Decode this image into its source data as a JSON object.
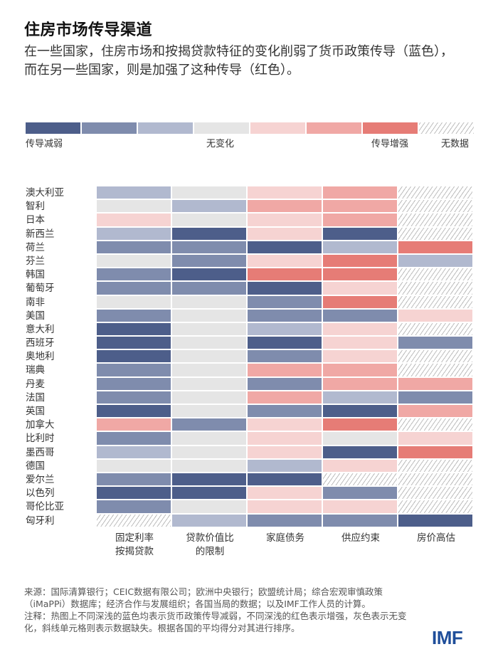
{
  "header": {
    "title": "住房市场传导渠道",
    "subtitle": "在一些国家，住房市场和按揭贷款特征的变化削弱了货币政策传导（蓝色），而在另一些国家，则是加强了这种传导（红色）。"
  },
  "legend": {
    "scale": [
      {
        "key": "B3",
        "color": "#4d5e8a"
      },
      {
        "key": "B2",
        "color": "#7f8cad"
      },
      {
        "key": "B1",
        "color": "#b1b9cf"
      },
      {
        "key": "N",
        "color": "#e5e5e5"
      },
      {
        "key": "R1",
        "color": "#f6d3d2"
      },
      {
        "key": "R2",
        "color": "#f0a8a5"
      },
      {
        "key": "R3",
        "color": "#e67c76"
      },
      {
        "key": "X",
        "color": "hatch"
      }
    ],
    "labels": {
      "weakened": "传导减弱",
      "no_change": "无变化",
      "strengthened": "传导增强",
      "no_data": "无数据"
    }
  },
  "chart_data": {
    "type": "heatmap",
    "title": "住房市场传导渠道",
    "subtitle": "在一些国家，住房市场和按揭贷款特征的变化削弱了货币政策传导（蓝色），而在另一些国家，则是加强了这种传导（红色）。",
    "value_scale": {
      "B3": -3,
      "B2": -2,
      "B1": -1,
      "N": 0,
      "R1": 1,
      "R2": 2,
      "R3": 3,
      "X": null
    },
    "columns": [
      "固定利率按揭贷款",
      "贷款价值比的限制",
      "家庭债务",
      "供应约束",
      "房价高估"
    ],
    "column_labels": [
      [
        "固定利率",
        "按揭贷款"
      ],
      [
        "贷款价值比",
        "的限制"
      ],
      [
        "家庭债务"
      ],
      [
        "供应约束"
      ],
      [
        "房价高估"
      ]
    ],
    "rows": [
      {
        "country": "澳大利亚",
        "cells": [
          "B1",
          "N",
          "R1",
          "R2",
          "X"
        ]
      },
      {
        "country": "智利",
        "cells": [
          "N",
          "B1",
          "R2",
          "R2",
          "X"
        ]
      },
      {
        "country": "日本",
        "cells": [
          "R1",
          "N",
          "R1",
          "R2",
          "X"
        ]
      },
      {
        "country": "新西兰",
        "cells": [
          "B1",
          "B3",
          "R1",
          "B3",
          "X"
        ]
      },
      {
        "country": "荷兰",
        "cells": [
          "B2",
          "B2",
          "B3",
          "B1",
          "R3"
        ]
      },
      {
        "country": "芬兰",
        "cells": [
          "N",
          "B2",
          "R1",
          "R3",
          "B1"
        ]
      },
      {
        "country": "韩国",
        "cells": [
          "B2",
          "B3",
          "R3",
          "R3",
          "X"
        ]
      },
      {
        "country": "葡萄牙",
        "cells": [
          "B2",
          "B2",
          "B3",
          "R1",
          "X"
        ]
      },
      {
        "country": "南非",
        "cells": [
          "N",
          "N",
          "B2",
          "R3",
          "X"
        ]
      },
      {
        "country": "美国",
        "cells": [
          "B2",
          "N",
          "B2",
          "B2",
          "R1"
        ]
      },
      {
        "country": "意大利",
        "cells": [
          "B3",
          "N",
          "B1",
          "R1",
          "X"
        ]
      },
      {
        "country": "西班牙",
        "cells": [
          "B3",
          "N",
          "B3",
          "R1",
          "B2"
        ]
      },
      {
        "country": "奥地利",
        "cells": [
          "B3",
          "N",
          "B2",
          "R1",
          "X"
        ]
      },
      {
        "country": "瑞典",
        "cells": [
          "B2",
          "N",
          "R2",
          "R2",
          "X"
        ]
      },
      {
        "country": "丹麦",
        "cells": [
          "B2",
          "N",
          "B2",
          "R2",
          "R2"
        ]
      },
      {
        "country": "法国",
        "cells": [
          "B2",
          "N",
          "R2",
          "B1",
          "B2"
        ]
      },
      {
        "country": "英国",
        "cells": [
          "B3",
          "N",
          "B2",
          "B3",
          "R2"
        ]
      },
      {
        "country": "加拿大",
        "cells": [
          "R2",
          "B2",
          "R1",
          "R3",
          "X"
        ]
      },
      {
        "country": "比利时",
        "cells": [
          "B2",
          "N",
          "R1",
          "N",
          "R1"
        ]
      },
      {
        "country": "墨西哥",
        "cells": [
          "B1",
          "N",
          "R1",
          "B3",
          "R3"
        ]
      },
      {
        "country": "德国",
        "cells": [
          "N",
          "N",
          "B1",
          "R1",
          "X"
        ]
      },
      {
        "country": "爱尔兰",
        "cells": [
          "B2",
          "B3",
          "B3",
          "X",
          "X"
        ]
      },
      {
        "country": "以色列",
        "cells": [
          "B3",
          "B3",
          "R1",
          "B2",
          "X"
        ]
      },
      {
        "country": "哥伦比亚",
        "cells": [
          "B2",
          "N",
          "R1",
          "R1",
          "X"
        ]
      },
      {
        "country": "匈牙利",
        "cells": [
          "X",
          "B1",
          "B2",
          "B2",
          "B3"
        ]
      }
    ],
    "legend": [
      "传导减弱",
      "无变化",
      "传导增强",
      "无数据"
    ],
    "legend_position": "top"
  },
  "footer": {
    "source": "来源：国际清算银行；CEIC数据有限公司；欧洲中央银行；欧盟统计局；综合宏观审慎政策（iMaPPi）数据库；经济合作与发展组织；各国当局的数据；以及IMF工作人员的计算。",
    "note": "注释：热图上不同深浅的蓝色均表示货币政策传导减弱，不同深浅的红色表示增强，灰色表示无变化，斜线单元格则表示数据缺失。根据各国的平均得分对其进行排序。",
    "logo": "IMF"
  }
}
